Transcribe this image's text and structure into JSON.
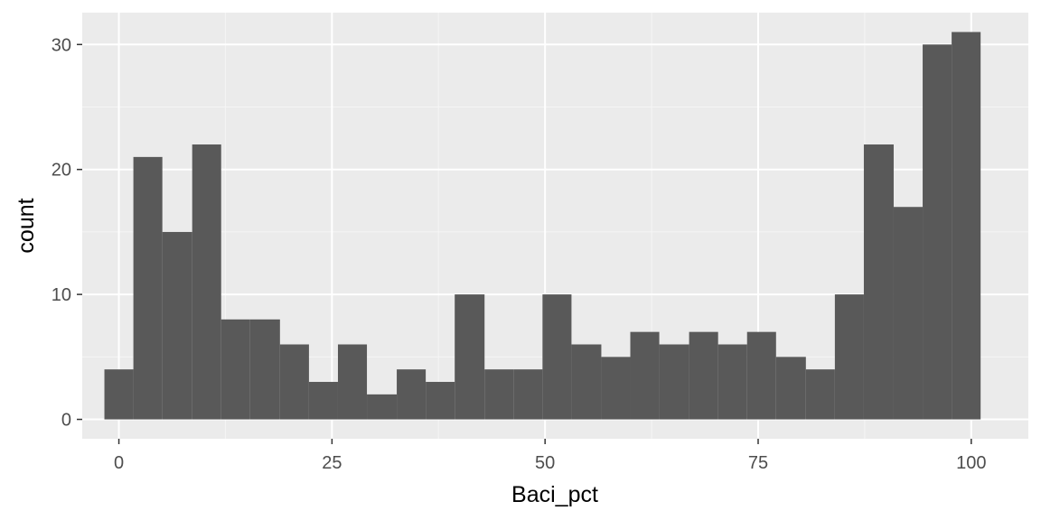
{
  "chart_data": {
    "type": "bar",
    "title": "",
    "xlabel": "Baci_pct",
    "ylabel": "count",
    "xlim": [
      -4.3,
      106.7
    ],
    "ylim": [
      -1.55,
      32.55
    ],
    "xticks": [
      0,
      25,
      50,
      75,
      100
    ],
    "xtick_labels": [
      "0",
      "25",
      "50",
      "75",
      "100"
    ],
    "yticks": [
      0,
      10,
      20,
      30
    ],
    "ytick_labels": [
      "0",
      "10",
      "20",
      "30"
    ],
    "bin_width": 3.43,
    "bins": [
      {
        "x0": -1.7,
        "x1": 1.7,
        "count": 4
      },
      {
        "x0": 1.7,
        "x1": 5.1,
        "count": 21
      },
      {
        "x0": 5.1,
        "x1": 8.6,
        "count": 15
      },
      {
        "x0": 8.6,
        "x1": 12.0,
        "count": 22
      },
      {
        "x0": 12.0,
        "x1": 15.4,
        "count": 8
      },
      {
        "x0": 15.4,
        "x1": 18.9,
        "count": 8
      },
      {
        "x0": 18.9,
        "x1": 22.3,
        "count": 6
      },
      {
        "x0": 22.3,
        "x1": 25.7,
        "count": 3
      },
      {
        "x0": 25.7,
        "x1": 29.1,
        "count": 6
      },
      {
        "x0": 29.1,
        "x1": 32.6,
        "count": 2
      },
      {
        "x0": 32.6,
        "x1": 36.0,
        "count": 4
      },
      {
        "x0": 36.0,
        "x1": 39.4,
        "count": 3
      },
      {
        "x0": 39.4,
        "x1": 42.9,
        "count": 10
      },
      {
        "x0": 42.9,
        "x1": 46.3,
        "count": 4
      },
      {
        "x0": 46.3,
        "x1": 49.7,
        "count": 4
      },
      {
        "x0": 49.7,
        "x1": 53.1,
        "count": 10
      },
      {
        "x0": 53.1,
        "x1": 56.6,
        "count": 6
      },
      {
        "x0": 56.6,
        "x1": 60.0,
        "count": 5
      },
      {
        "x0": 60.0,
        "x1": 63.4,
        "count": 7
      },
      {
        "x0": 63.4,
        "x1": 66.9,
        "count": 6
      },
      {
        "x0": 66.9,
        "x1": 70.3,
        "count": 7
      },
      {
        "x0": 70.3,
        "x1": 73.7,
        "count": 6
      },
      {
        "x0": 73.7,
        "x1": 77.1,
        "count": 7
      },
      {
        "x0": 77.1,
        "x1": 80.6,
        "count": 5
      },
      {
        "x0": 80.6,
        "x1": 84.0,
        "count": 4
      },
      {
        "x0": 84.0,
        "x1": 87.4,
        "count": 10
      },
      {
        "x0": 87.4,
        "x1": 90.9,
        "count": 22
      },
      {
        "x0": 90.9,
        "x1": 94.3,
        "count": 17
      },
      {
        "x0": 94.3,
        "x1": 97.7,
        "count": 30
      },
      {
        "x0": 97.7,
        "x1": 101.1,
        "count": 31
      }
    ],
    "colors": {
      "panel_background": "#ebebeb",
      "grid_major": "#ffffff",
      "grid_minor": "#f5f5f5",
      "bar_fill": "#595959",
      "tick_text": "#4d4d4d",
      "tick_mark": "#333333"
    },
    "grid": true,
    "legend": "none"
  }
}
